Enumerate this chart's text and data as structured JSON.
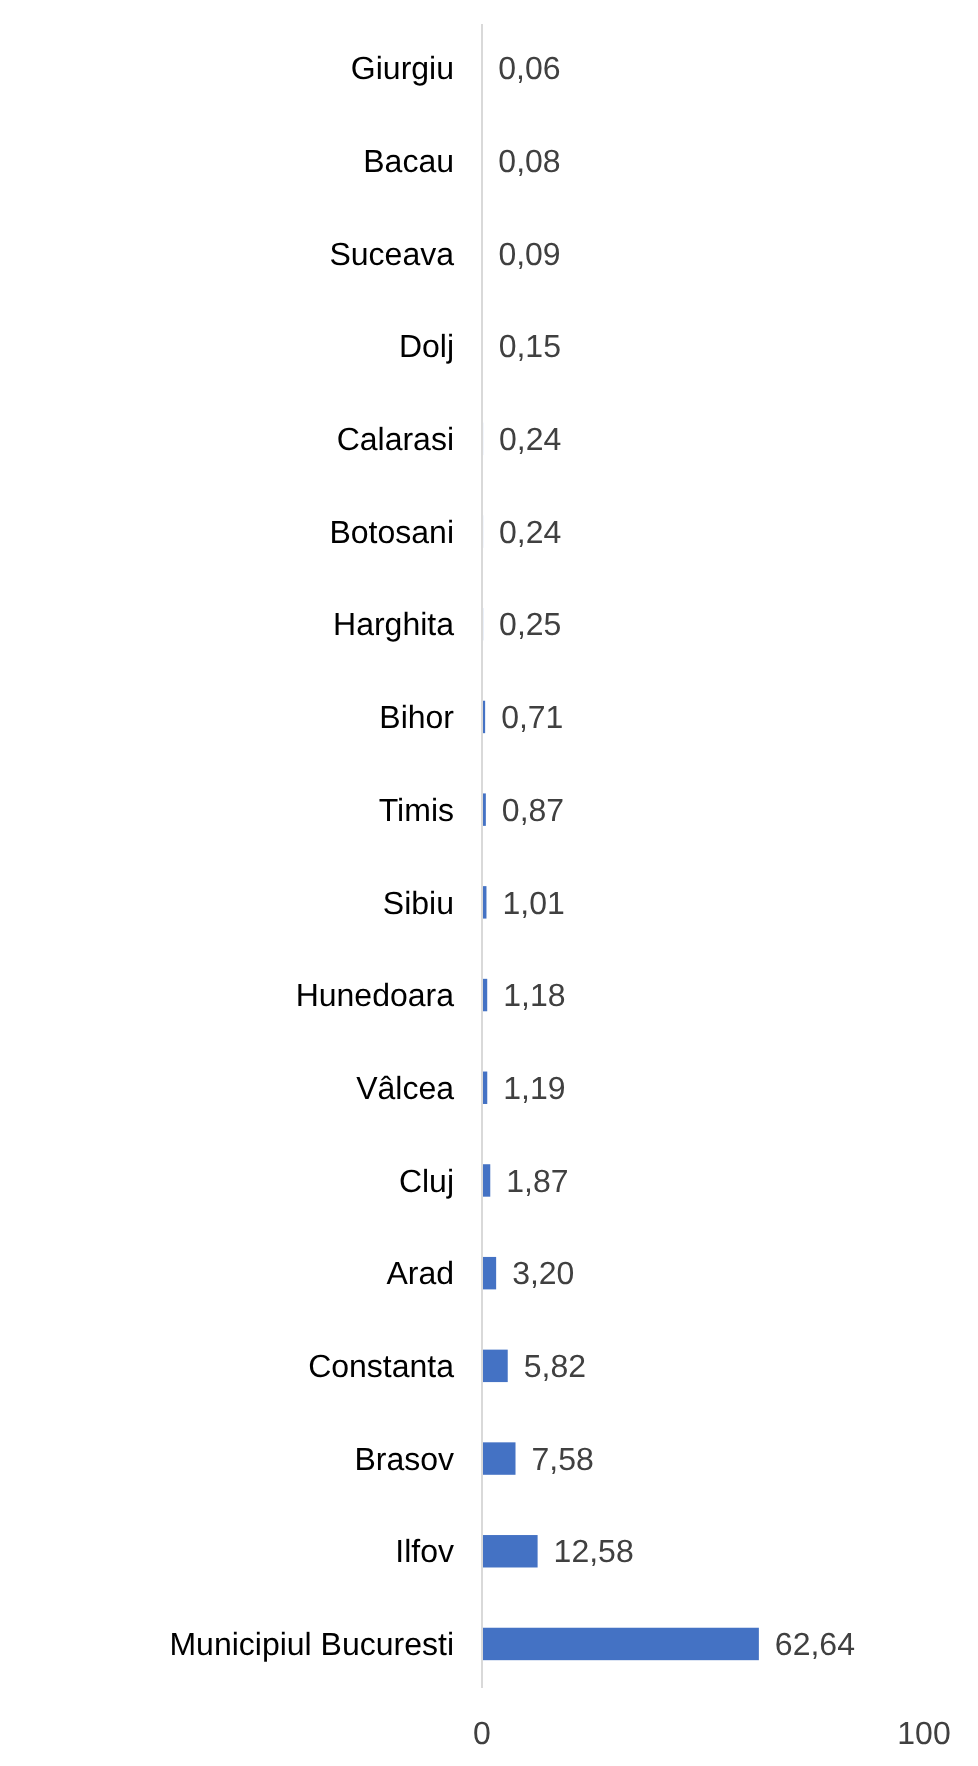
{
  "chart_data": {
    "type": "bar",
    "orientation": "horizontal",
    "categories": [
      "Giurgiu",
      "Bacau",
      "Suceava",
      "Dolj",
      "Calarasi",
      "Botosani",
      "Harghita",
      "Bihor",
      "Timis",
      "Sibiu",
      "Hunedoara",
      "Vâlcea",
      "Cluj",
      "Arad",
      "Constanta",
      "Brasov",
      "Ilfov",
      "Municipiul Bucuresti"
    ],
    "values": [
      0.06,
      0.08,
      0.09,
      0.15,
      0.24,
      0.24,
      0.25,
      0.71,
      0.87,
      1.01,
      1.18,
      1.19,
      1.87,
      3.2,
      5.82,
      7.58,
      12.58,
      62.64
    ],
    "value_labels": [
      "0,06",
      "0,08",
      "0,09",
      "0,15",
      "0,24",
      "0,24",
      "0,25",
      "0,71",
      "0,87",
      "1,01",
      "1,18",
      "1,19",
      "1,87",
      "3,20",
      "5,82",
      "7,58",
      "12,58",
      "62,64"
    ],
    "color": "#4472c4",
    "xlim": [
      0,
      100
    ],
    "xticks": [
      0,
      100
    ],
    "grid": false
  }
}
